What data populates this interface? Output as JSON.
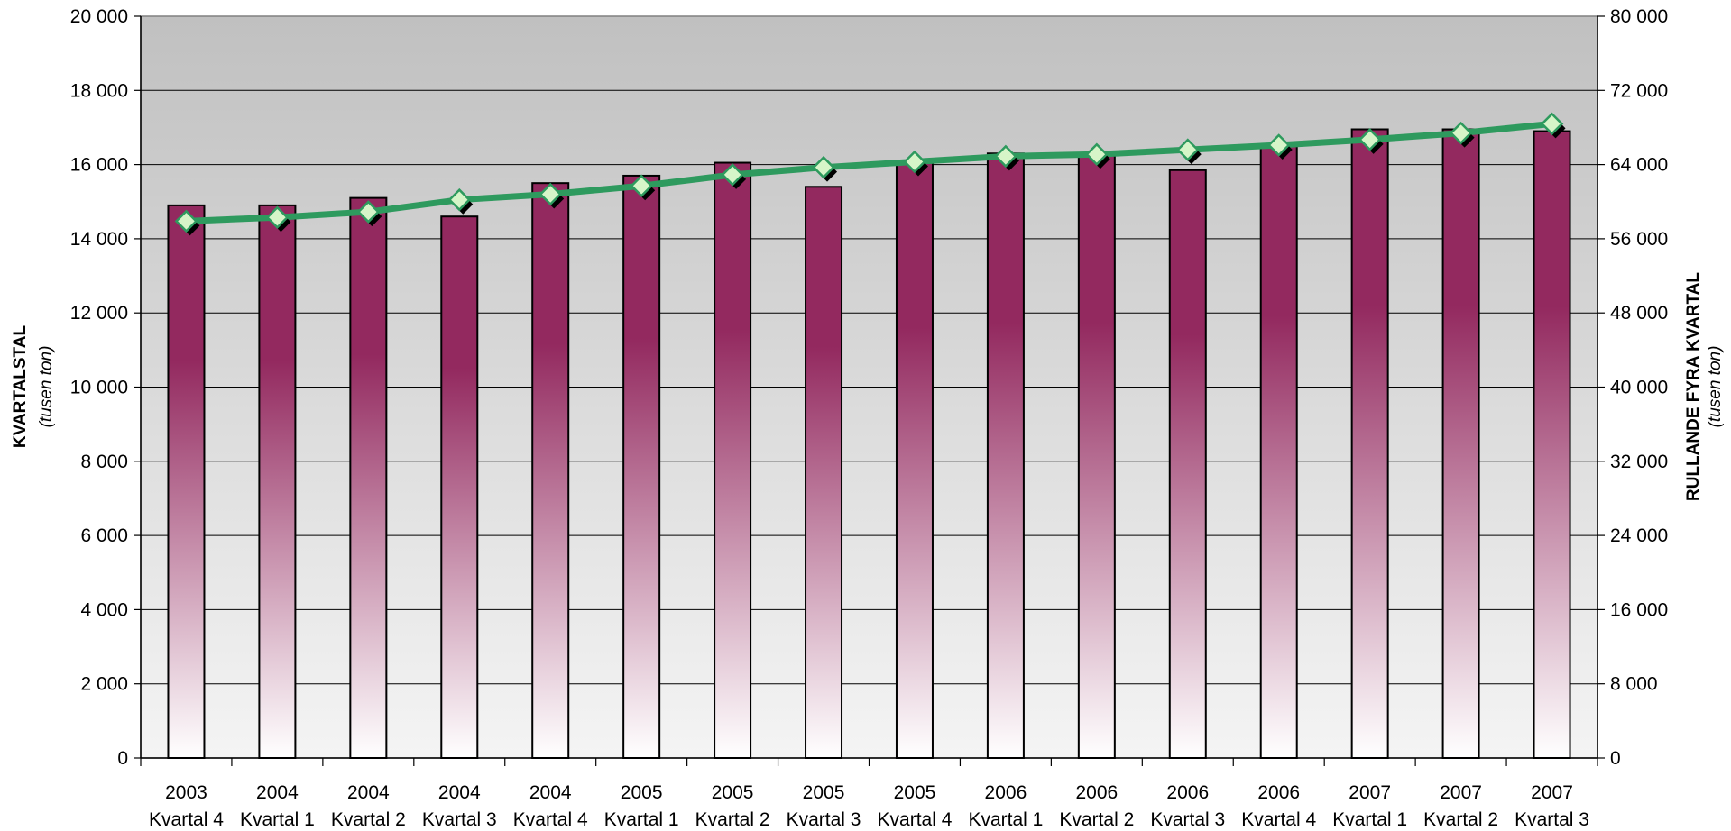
{
  "chart_data": {
    "type": "bar",
    "categories": [
      [
        "2003",
        "Kvartal 4"
      ],
      [
        "2004",
        "Kvartal 1"
      ],
      [
        "2004",
        "Kvartal 2"
      ],
      [
        "2004",
        "Kvartal 3"
      ],
      [
        "2004",
        "Kvartal 4"
      ],
      [
        "2005",
        "Kvartal 1"
      ],
      [
        "2005",
        "Kvartal 2"
      ],
      [
        "2005",
        "Kvartal 3"
      ],
      [
        "2005",
        "Kvartal 4"
      ],
      [
        "2006",
        "Kvartal 1"
      ],
      [
        "2006",
        "Kvartal 2"
      ],
      [
        "2006",
        "Kvartal 3"
      ],
      [
        "2006",
        "Kvartal 4"
      ],
      [
        "2007",
        "Kvartal 1"
      ],
      [
        "2007",
        "Kvartal 2"
      ],
      [
        "2007",
        "Kvartal 3"
      ]
    ],
    "series": [
      {
        "type": "bar",
        "axis": "left",
        "values": [
          14900,
          14900,
          15100,
          14600,
          15500,
          15700,
          16050,
          15400,
          16100,
          16300,
          16300,
          15850,
          16550,
          16950,
          16950,
          16900
        ]
      },
      {
        "type": "line",
        "axis": "right",
        "values": [
          57900,
          58300,
          58900,
          60200,
          60800,
          61700,
          62900,
          63700,
          64300,
          64900,
          65100,
          65600,
          66100,
          66700,
          67400,
          68400
        ]
      }
    ],
    "y_left": {
      "title": "KVARTALSTAL",
      "subtitle": "(tusen ton)",
      "min": 0,
      "max": 20000,
      "step": 2000,
      "ticks": [
        "0",
        "2 000",
        "4 000",
        "6 000",
        "8 000",
        "10 000",
        "12 000",
        "14 000",
        "16 000",
        "18 000",
        "20 000"
      ]
    },
    "y_right": {
      "title": "RULLANDE FYRA KVARTAL",
      "subtitle": "(tusen ton)",
      "min": 0,
      "max": 80000,
      "step": 8000,
      "ticks": [
        "0",
        "8 000",
        "16 000",
        "24 000",
        "32 000",
        "40 000",
        "48 000",
        "56 000",
        "64 000",
        "72 000",
        "80 000"
      ]
    },
    "grid": true,
    "legend": "none",
    "colors": {
      "bar_top": "#93295f",
      "bar_bottom": "#ffffff",
      "line": "#2e9a5e",
      "marker_fill": "#d6f5c8",
      "marker_stroke": "#2e9a5e",
      "plot_bg_top": "#c0c0c0",
      "plot_bg_bottom": "#f4f4f4"
    }
  }
}
